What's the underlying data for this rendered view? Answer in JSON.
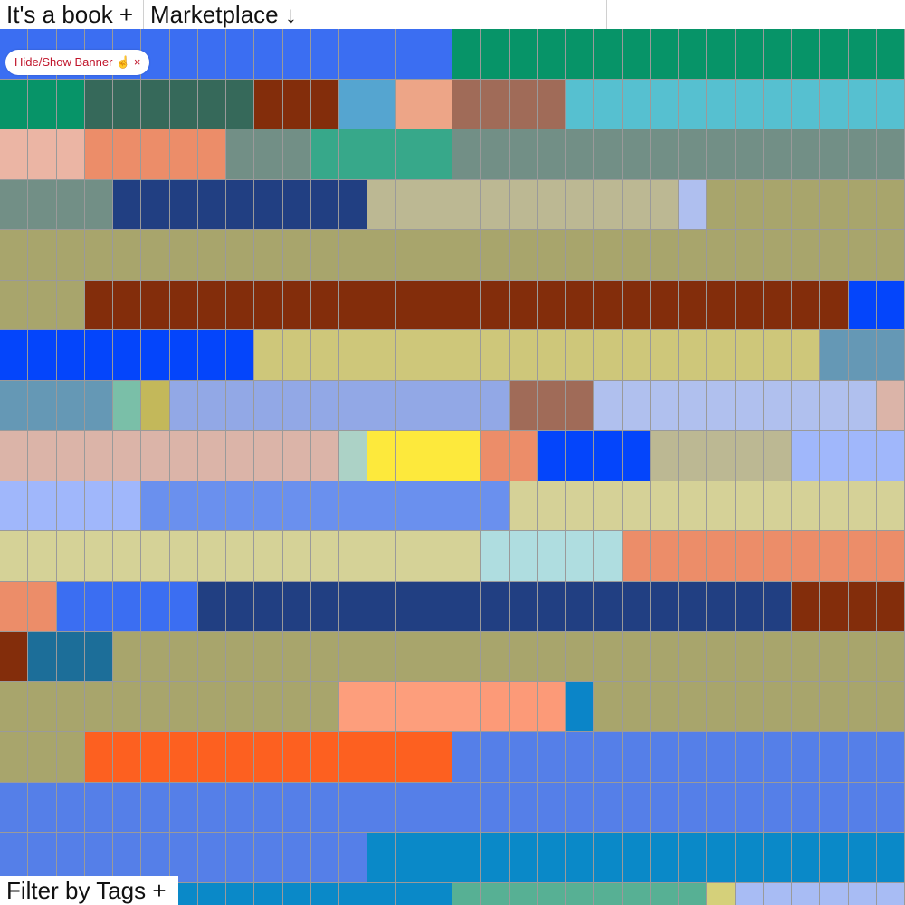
{
  "header": {
    "book": "It's a book +",
    "marketplace": "Marketplace ↓"
  },
  "banner_button": {
    "label": "Hide/Show Banner ☝",
    "close": "×"
  },
  "filter": "Filter by Tags +"
}
